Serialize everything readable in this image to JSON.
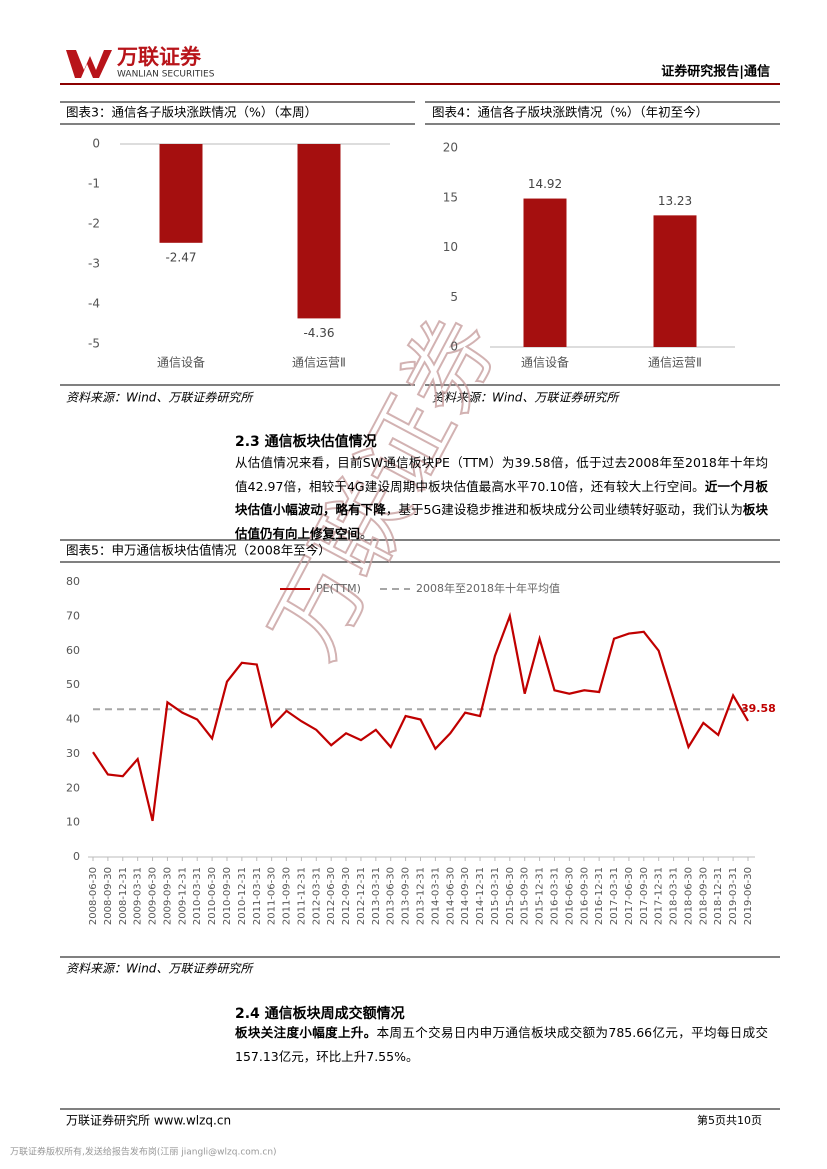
{
  "header": {
    "logo_name": "万联证券",
    "logo_en": "WANLIAN SECURITIES",
    "report_type": "证券研究报告|通信"
  },
  "watermark": "万联证券",
  "chart_data": [
    {
      "type": "bar",
      "title": "图表3：通信各子版块涨跌情况（%）（本周）",
      "categories": [
        "通信设备",
        "通信运营Ⅱ"
      ],
      "values": [
        -2.47,
        -4.36
      ],
      "color": "#a50f0f",
      "ylim": [
        -5,
        0
      ],
      "yticks": [
        0,
        -1,
        -2,
        -3,
        -4,
        -5
      ],
      "grid": false
    },
    {
      "type": "bar",
      "title": "图表4：通信各子版块涨跌情况（%）（年初至今）",
      "categories": [
        "通信设备",
        "通信运营Ⅱ"
      ],
      "values": [
        14.92,
        13.23
      ],
      "color": "#a50f0f",
      "ylim": [
        0,
        20
      ],
      "yticks": [
        0,
        5,
        10,
        15,
        20
      ],
      "grid": false
    },
    {
      "type": "line",
      "title": "图表5：申万通信板块估值情况（2008年至今）",
      "x": [
        "2008-06-30",
        "2008-09-30",
        "2008-12-31",
        "2009-03-31",
        "2009-06-30",
        "2009-09-30",
        "2009-12-31",
        "2010-03-31",
        "2010-06-30",
        "2010-09-30",
        "2010-12-31",
        "2011-03-31",
        "2011-06-30",
        "2011-09-30",
        "2011-12-31",
        "2012-03-31",
        "2012-06-30",
        "2012-09-30",
        "2012-12-31",
        "2013-03-31",
        "2013-06-30",
        "2013-09-30",
        "2013-12-31",
        "2014-03-31",
        "2014-06-30",
        "2014-09-30",
        "2014-12-31",
        "2015-03-31",
        "2015-06-30",
        "2015-09-30",
        "2015-12-31",
        "2016-03-31",
        "2016-06-30",
        "2016-09-30",
        "2016-12-31",
        "2017-03-31",
        "2017-06-30",
        "2017-09-30",
        "2017-12-31",
        "2018-03-31",
        "2018-06-30",
        "2018-09-30",
        "2018-12-31",
        "2019-03-31",
        "2019-06-30"
      ],
      "series": [
        {
          "name": "PE(TTM)",
          "color": "#c00000",
          "dash": false,
          "values": [
            30.5,
            24,
            23.5,
            28.5,
            10.5,
            45,
            42,
            40,
            34.5,
            51,
            56.5,
            56,
            38,
            42.5,
            39.5,
            37,
            32.5,
            36,
            34,
            37,
            32,
            41,
            40,
            31.5,
            36,
            42,
            41,
            58.5,
            70.1,
            47.5,
            63.5,
            48.5,
            47.5,
            48.5,
            48,
            63.5,
            65,
            65.5,
            60,
            46,
            32,
            39,
            35.5,
            47,
            39.58
          ]
        },
        {
          "name": "2008年至2018年十年平均值",
          "color": "#a6a6a6",
          "dash": true,
          "values": [
            42.97,
            42.97,
            42.97,
            42.97,
            42.97,
            42.97,
            42.97,
            42.97,
            42.97,
            42.97,
            42.97,
            42.97,
            42.97,
            42.97,
            42.97,
            42.97,
            42.97,
            42.97,
            42.97,
            42.97,
            42.97,
            42.97,
            42.97,
            42.97,
            42.97,
            42.97,
            42.97,
            42.97,
            42.97,
            42.97,
            42.97,
            42.97,
            42.97,
            42.97,
            42.97,
            42.97,
            42.97,
            42.97,
            42.97,
            42.97,
            42.97,
            42.97,
            42.97,
            42.97,
            42.97
          ]
        }
      ],
      "ylim": [
        0,
        80
      ],
      "yticks": [
        0,
        10,
        20,
        30,
        40,
        50,
        60,
        70,
        80
      ],
      "grid": false,
      "legend": "top"
    }
  ],
  "sources": [
    "资料来源：Wind、万联证券研究所",
    "资料来源：Wind、万联证券研究所",
    "资料来源：Wind、万联证券研究所"
  ],
  "sections": [
    {
      "heading": "2.3 通信板块估值情况",
      "runs": [
        {
          "text": "从估值情况来看，目前SW通信板块PE（TTM）为39.58倍，低于过去2008年至2018年十年均值42.97倍，相较于4G建设周期中板块估值最高水平70.10倍，还有较大上行空间。",
          "bold": false
        },
        {
          "text": "近一个月板块估值小幅波动，略有下降",
          "bold": true
        },
        {
          "text": "，基于5G建设稳步推进和板块成分公司业绩转好驱动，我们认为",
          "bold": false
        },
        {
          "text": "板块估值仍有向上修复空间",
          "bold": true
        },
        {
          "text": "。",
          "bold": false
        }
      ]
    },
    {
      "heading": "2.4 通信板块周成交额情况",
      "runs": [
        {
          "text": "板块关注度小幅度上升。",
          "bold": true
        },
        {
          "text": "本周五个交易日内申万通信板块成交额为785.66亿元，平均每日成交157.13亿元，环比上升7.55%。",
          "bold": false
        }
      ]
    }
  ],
  "footer": {
    "left": "万联证券研究所 www.wlzq.cn",
    "right": "第5页共10页",
    "copyright": "万联证券版权所有,发送给报告发布岗(江丽 jiangli@wlzq.com.cn)"
  }
}
